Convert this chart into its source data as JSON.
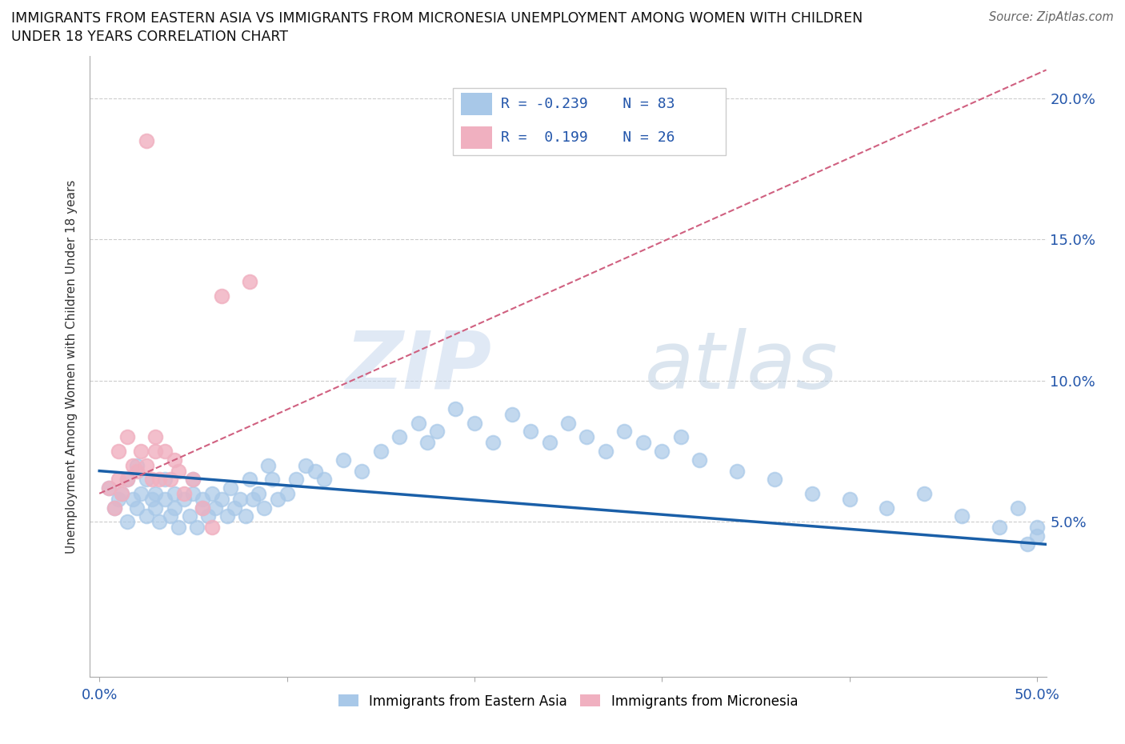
{
  "title_line1": "IMMIGRANTS FROM EASTERN ASIA VS IMMIGRANTS FROM MICRONESIA UNEMPLOYMENT AMONG WOMEN WITH CHILDREN",
  "title_line2": "UNDER 18 YEARS CORRELATION CHART",
  "source_text": "Source: ZipAtlas.com",
  "ylabel": "Unemployment Among Women with Children Under 18 years",
  "r_eastern_asia": -0.239,
  "n_eastern_asia": 83,
  "r_micronesia": 0.199,
  "n_micronesia": 26,
  "watermark_zip": "ZIP",
  "watermark_atlas": "atlas",
  "xlim": [
    -0.005,
    0.505
  ],
  "ylim": [
    -0.005,
    0.215
  ],
  "yticks": [
    0.05,
    0.1,
    0.15,
    0.2
  ],
  "ytick_labels": [
    "5.0%",
    "10.0%",
    "15.0%",
    "20.0%"
  ],
  "color_eastern_asia": "#a8c8e8",
  "color_micronesia": "#f0b0c0",
  "trendline_ea_color": "#1a5fa8",
  "trendline_mic_color": "#d06080",
  "eastern_asia_x": [
    0.005,
    0.008,
    0.01,
    0.012,
    0.015,
    0.015,
    0.018,
    0.02,
    0.02,
    0.022,
    0.025,
    0.025,
    0.028,
    0.03,
    0.03,
    0.032,
    0.035,
    0.035,
    0.038,
    0.04,
    0.04,
    0.042,
    0.045,
    0.048,
    0.05,
    0.05,
    0.052,
    0.055,
    0.055,
    0.058,
    0.06,
    0.062,
    0.065,
    0.068,
    0.07,
    0.072,
    0.075,
    0.078,
    0.08,
    0.082,
    0.085,
    0.088,
    0.09,
    0.092,
    0.095,
    0.1,
    0.105,
    0.11,
    0.115,
    0.12,
    0.13,
    0.14,
    0.15,
    0.16,
    0.17,
    0.175,
    0.18,
    0.19,
    0.2,
    0.21,
    0.22,
    0.23,
    0.24,
    0.25,
    0.26,
    0.27,
    0.28,
    0.29,
    0.3,
    0.31,
    0.32,
    0.34,
    0.36,
    0.38,
    0.4,
    0.42,
    0.44,
    0.46,
    0.48,
    0.49,
    0.495,
    0.5,
    0.5
  ],
  "eastern_asia_y": [
    0.062,
    0.055,
    0.058,
    0.06,
    0.065,
    0.05,
    0.058,
    0.055,
    0.07,
    0.06,
    0.052,
    0.065,
    0.058,
    0.055,
    0.06,
    0.05,
    0.058,
    0.065,
    0.052,
    0.055,
    0.06,
    0.048,
    0.058,
    0.052,
    0.06,
    0.065,
    0.048,
    0.058,
    0.055,
    0.052,
    0.06,
    0.055,
    0.058,
    0.052,
    0.062,
    0.055,
    0.058,
    0.052,
    0.065,
    0.058,
    0.06,
    0.055,
    0.07,
    0.065,
    0.058,
    0.06,
    0.065,
    0.07,
    0.068,
    0.065,
    0.072,
    0.068,
    0.075,
    0.08,
    0.085,
    0.078,
    0.082,
    0.09,
    0.085,
    0.078,
    0.088,
    0.082,
    0.078,
    0.085,
    0.08,
    0.075,
    0.082,
    0.078,
    0.075,
    0.08,
    0.072,
    0.068,
    0.065,
    0.06,
    0.058,
    0.055,
    0.06,
    0.052,
    0.048,
    0.055,
    0.042,
    0.048,
    0.045
  ],
  "micronesia_x": [
    0.005,
    0.008,
    0.01,
    0.01,
    0.012,
    0.015,
    0.015,
    0.018,
    0.02,
    0.022,
    0.025,
    0.025,
    0.028,
    0.03,
    0.03,
    0.032,
    0.035,
    0.038,
    0.04,
    0.042,
    0.045,
    0.05,
    0.055,
    0.06,
    0.065,
    0.08
  ],
  "micronesia_y": [
    0.062,
    0.055,
    0.065,
    0.075,
    0.06,
    0.065,
    0.08,
    0.07,
    0.068,
    0.075,
    0.185,
    0.07,
    0.065,
    0.08,
    0.075,
    0.065,
    0.075,
    0.065,
    0.072,
    0.068,
    0.06,
    0.065,
    0.055,
    0.048,
    0.13,
    0.135
  ],
  "trendline_ea_x0": 0.0,
  "trendline_ea_x1": 0.505,
  "trendline_ea_y0": 0.068,
  "trendline_ea_y1": 0.042,
  "trendline_mic_x0": 0.0,
  "trendline_mic_x1": 0.505,
  "trendline_mic_y0": 0.06,
  "trendline_mic_y1": 0.21
}
